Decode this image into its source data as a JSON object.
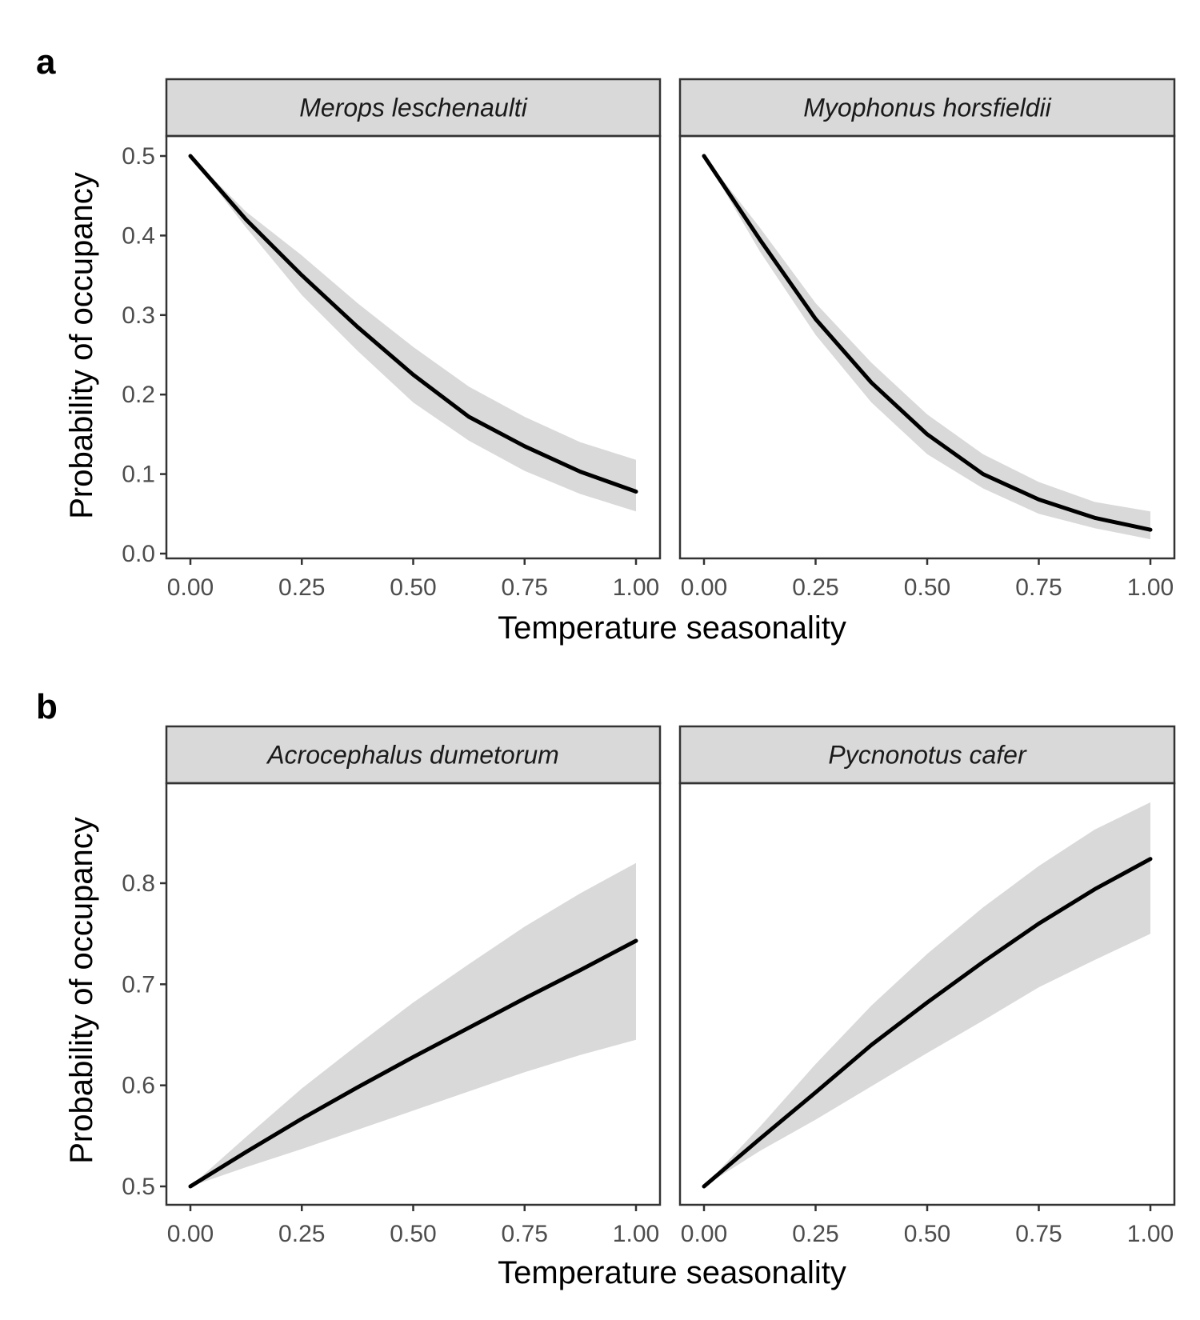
{
  "figure": {
    "panels": [
      {
        "label": "a",
        "ylabel": "Probability of occupancy",
        "xlabel": "Temperature seasonality",
        "ylim": [
          0,
          0.5
        ],
        "yticks": [
          "0.0",
          "0.1",
          "0.2",
          "0.3",
          "0.4",
          "0.5"
        ],
        "ytick_values": [
          0,
          0.1,
          0.2,
          0.3,
          0.4,
          0.5
        ],
        "xticks": [
          "0.00",
          "0.25",
          "0.50",
          "0.75",
          "1.00"
        ],
        "xtick_values": [
          0,
          0.25,
          0.5,
          0.75,
          1
        ]
      },
      {
        "label": "b",
        "ylabel": "Probability of occupancy",
        "xlabel": "Temperature seasonality",
        "ylim": [
          0.5,
          0.85
        ],
        "yticks": [
          "0.5",
          "0.6",
          "0.7",
          "0.8"
        ],
        "ytick_values": [
          0.5,
          0.6,
          0.7,
          0.8
        ],
        "xticks": [
          "0.00",
          "0.25",
          "0.50",
          "0.75",
          "1.00"
        ],
        "xtick_values": [
          0,
          0.25,
          0.5,
          0.75,
          1
        ]
      }
    ]
  },
  "colors": {
    "line": "#000000",
    "ribbon": "#d9d9d9",
    "strip_fill": "#d9d9d9",
    "border": "#333333",
    "tick_text": "#4d4d4d"
  },
  "chart_data": [
    {
      "type": "line",
      "panel": "a",
      "facet": "Merops leschenaulti",
      "xlabel": "Temperature seasonality",
      "ylabel": "Probability of occupancy",
      "xlim": [
        0,
        1
      ],
      "ylim": [
        0,
        0.5
      ],
      "grid": false,
      "x": [
        0,
        0.125,
        0.25,
        0.375,
        0.5,
        0.625,
        0.75,
        0.875,
        1.0
      ],
      "y": [
        0.5,
        0.42,
        0.35,
        0.285,
        0.225,
        0.172,
        0.135,
        0.103,
        0.078
      ],
      "ci_lower": [
        0.5,
        0.41,
        0.325,
        0.255,
        0.19,
        0.142,
        0.104,
        0.075,
        0.053
      ],
      "ci_upper": [
        0.5,
        0.43,
        0.375,
        0.315,
        0.26,
        0.21,
        0.172,
        0.14,
        0.118
      ]
    },
    {
      "type": "line",
      "panel": "a",
      "facet": "Myophonus horsfieldii",
      "xlabel": "Temperature seasonality",
      "ylabel": "Probability of occupancy",
      "xlim": [
        0,
        1
      ],
      "ylim": [
        0,
        0.5
      ],
      "grid": false,
      "x": [
        0,
        0.125,
        0.25,
        0.375,
        0.5,
        0.625,
        0.75,
        0.875,
        1.0
      ],
      "y": [
        0.5,
        0.395,
        0.295,
        0.215,
        0.15,
        0.1,
        0.068,
        0.045,
        0.03
      ],
      "ci_lower": [
        0.5,
        0.38,
        0.275,
        0.19,
        0.125,
        0.082,
        0.05,
        0.032,
        0.018
      ],
      "ci_upper": [
        0.5,
        0.41,
        0.315,
        0.24,
        0.175,
        0.125,
        0.09,
        0.065,
        0.053
      ]
    },
    {
      "type": "line",
      "panel": "b",
      "facet": "Acrocephalus dumetorum",
      "xlabel": "Temperature seasonality",
      "ylabel": "Probability of occupancy",
      "xlim": [
        0,
        1
      ],
      "ylim": [
        0.5,
        0.85
      ],
      "grid": false,
      "x": [
        0,
        0.125,
        0.25,
        0.375,
        0.5,
        0.625,
        0.75,
        0.875,
        1.0
      ],
      "y": [
        0.5,
        0.534,
        0.567,
        0.598,
        0.628,
        0.657,
        0.686,
        0.714,
        0.743
      ],
      "ci_lower": [
        0.5,
        0.519,
        0.537,
        0.556,
        0.575,
        0.594,
        0.613,
        0.63,
        0.645
      ],
      "ci_upper": [
        0.5,
        0.549,
        0.597,
        0.64,
        0.682,
        0.72,
        0.757,
        0.79,
        0.82
      ]
    },
    {
      "type": "line",
      "panel": "b",
      "facet": "Pycnonotus cafer",
      "xlabel": "Temperature seasonality",
      "ylabel": "Probability of occupancy",
      "xlim": [
        0,
        1
      ],
      "ylim": [
        0.5,
        0.85
      ],
      "grid": false,
      "x": [
        0,
        0.125,
        0.25,
        0.375,
        0.5,
        0.625,
        0.75,
        0.875,
        1.0
      ],
      "y": [
        0.5,
        0.547,
        0.593,
        0.64,
        0.682,
        0.722,
        0.76,
        0.794,
        0.824
      ],
      "ci_lower": [
        0.5,
        0.535,
        0.566,
        0.599,
        0.632,
        0.664,
        0.697,
        0.724,
        0.75
      ],
      "ci_upper": [
        0.5,
        0.559,
        0.621,
        0.679,
        0.73,
        0.776,
        0.817,
        0.853,
        0.88
      ]
    }
  ]
}
